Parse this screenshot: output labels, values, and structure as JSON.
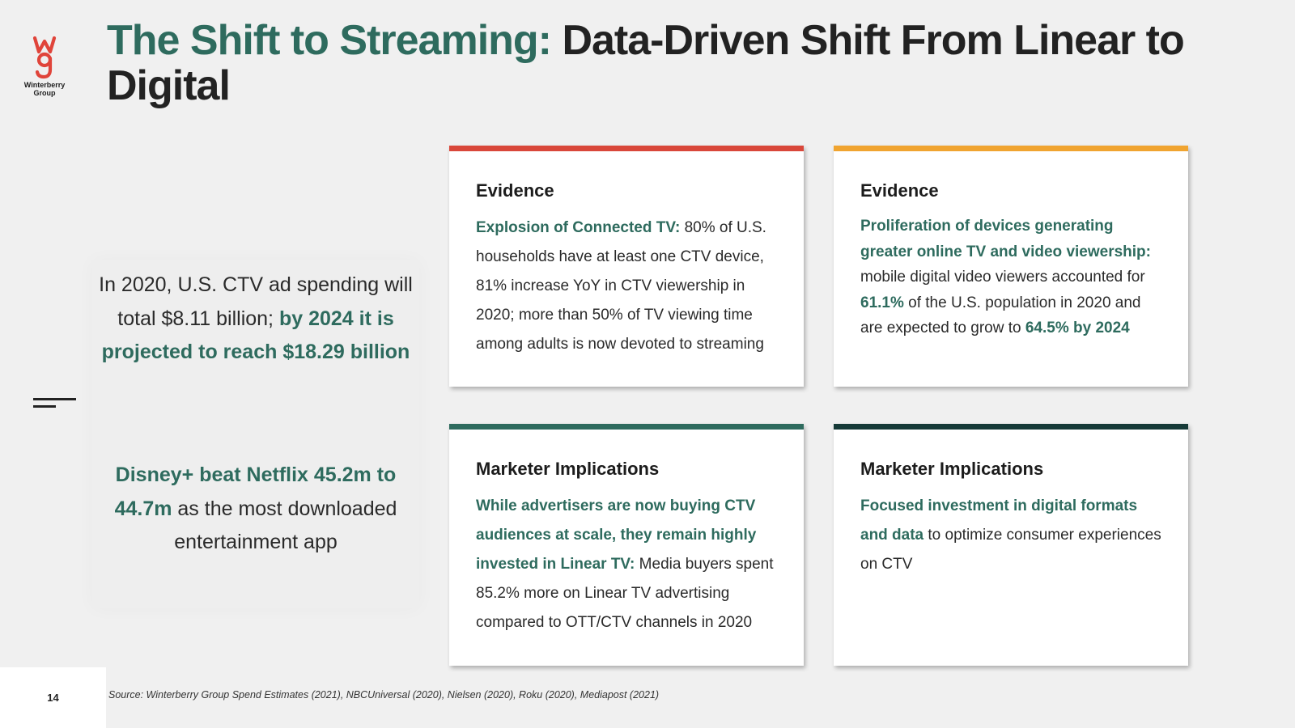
{
  "logo": {
    "icon": "wg-logo-icon",
    "text_line1": "Winterberry",
    "text_line2": "Group",
    "color": "#e0443a"
  },
  "header": {
    "title_accent": "The Shift to Streaming:",
    "title_rest": "Data-Driven Shift From Linear to Digital"
  },
  "colors": {
    "accent_green": "#2e6b5e",
    "red": "#d9473a",
    "orange": "#f0a430",
    "teal": "#2e6b5e",
    "dark_teal": "#163a38"
  },
  "left_panel": {
    "stat1_plain": "In 2020, U.S. CTV ad spending will total $8.11 billion;",
    "stat1_hl": "by 2024 it is projected to reach $18.29 billion",
    "stat2_hl": "Disney+ beat Netflix 45.2m to 44.7m",
    "stat2_plain": "as the most downloaded entertainment app"
  },
  "cards": [
    {
      "heading": "Evidence",
      "bar_color": "#d9473a",
      "hl": "Explosion of Connected TV:",
      "text": "80% of U.S. households have at least one CTV device, 81% increase YoY in CTV viewership in 2020; more than 50% of TV viewing time among adults is now devoted to streaming"
    },
    {
      "heading": "Evidence",
      "bar_color": "#f0a430",
      "hl": "Proliferation of devices generating greater online TV and video viewership:",
      "text_a": "mobile digital video viewers accounted for",
      "hl_b": "61.1%",
      "text_c": "of the U.S. population in 2020 and are expected to grow to",
      "hl_d": "64.5% by 2024"
    },
    {
      "heading": "Marketer Implications",
      "bar_color": "#2e6b5e",
      "hl": "While advertisers are now buying CTV audiences at scale, they remain highly invested in Linear TV:",
      "text": "Media buyers spent 85.2% more on Linear TV advertising compared to OTT/CTV channels in 2020"
    },
    {
      "heading": "Marketer Implications",
      "bar_color": "#163a38",
      "hl": "Focused investment in digital formats and data",
      "text": "to optimize consumer experiences on CTV"
    }
  ],
  "footer": {
    "page_number": "14",
    "source": "Source: Winterberry Group Spend Estimates (2021), NBCUniversal (2020), Nielsen (2020), Roku (2020), Mediapost (2021)"
  }
}
